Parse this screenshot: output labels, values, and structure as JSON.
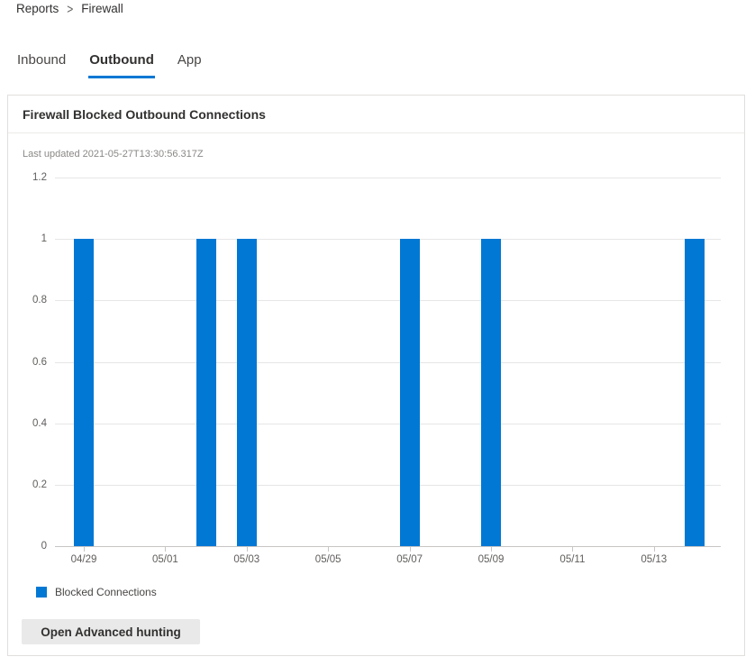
{
  "breadcrumb": {
    "items": [
      "Reports",
      "Firewall"
    ],
    "separator": ">"
  },
  "tabs": [
    {
      "label": "Inbound",
      "active": false
    },
    {
      "label": "Outbound",
      "active": true
    },
    {
      "label": "App",
      "active": false
    }
  ],
  "card": {
    "title": "Firewall Blocked Outbound Connections",
    "last_updated": "Last updated 2021-05-27T13:30:56.317Z",
    "button_label": "Open Advanced hunting"
  },
  "legend": {
    "label": "Blocked Connections",
    "color": "#0078d4"
  },
  "colors": {
    "accent": "#0078d4"
  },
  "chart_data": {
    "type": "bar",
    "title": "Firewall Blocked Outbound Connections",
    "series_name": "Blocked Connections",
    "bar_color": "#0078d4",
    "x": [
      "04/29",
      "04/30",
      "05/01",
      "05/02",
      "05/03",
      "05/04",
      "05/05",
      "05/06",
      "05/07",
      "05/08",
      "05/09",
      "05/10",
      "05/11",
      "05/12",
      "05/13",
      "05/14"
    ],
    "values": [
      1,
      0,
      0,
      1,
      1,
      0,
      0,
      0,
      1,
      0,
      1,
      0,
      0,
      0,
      0,
      1
    ],
    "x_tick_labels": [
      "04/29",
      "05/01",
      "05/03",
      "05/05",
      "05/07",
      "05/09",
      "05/11",
      "05/13"
    ],
    "y_ticks": [
      0,
      0.2,
      0.4,
      0.6,
      0.8,
      1,
      1.2
    ],
    "y_tick_labels": [
      "0",
      "0.2",
      "0.4",
      "0.6",
      "0.8",
      "1",
      "1.2"
    ],
    "ylim": [
      0,
      1.2
    ],
    "grid": true,
    "legend_position": "bottom-left"
  }
}
